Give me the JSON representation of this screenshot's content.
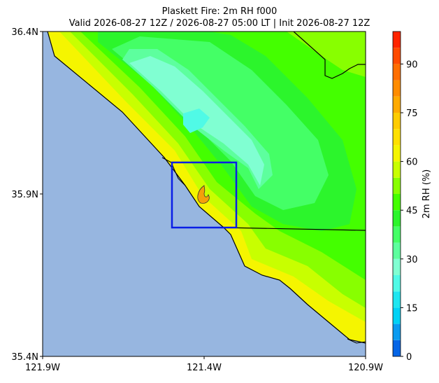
{
  "map": {
    "title": "Plaskett Fire: 2m RH f000",
    "subtitle": "Valid 2026-08-27 12Z / 2026-08-27 05:00 LT | Init 2026-08-27 12Z",
    "xlim": [
      -121.9,
      -120.9
    ],
    "ylim": [
      35.4,
      36.4
    ],
    "xticks": [
      {
        "value": -121.9,
        "label": "121.9W"
      },
      {
        "value": -121.4,
        "label": "121.4W"
      },
      {
        "value": -120.9,
        "label": "120.9W"
      }
    ],
    "yticks": [
      {
        "value": 35.4,
        "label": "35.4N"
      },
      {
        "value": 35.9,
        "label": "35.9N"
      },
      {
        "value": 36.4,
        "label": "36.4N"
      }
    ],
    "colorbar": {
      "label": "2m RH (%)",
      "ylim": [
        0,
        100
      ],
      "levels": [
        0,
        5,
        10,
        15,
        20,
        25,
        30,
        35,
        40,
        45,
        50,
        55,
        60,
        65,
        70,
        75,
        80,
        85,
        90,
        95,
        100
      ],
      "colors": [
        "#0565e6",
        "#0a9bf0",
        "#00d2f5",
        "#1ee6f0",
        "#50fae6",
        "#80ffd2",
        "#5dff9e",
        "#44ff66",
        "#2cf52c",
        "#44ff00",
        "#88ff00",
        "#c8ff00",
        "#f5f500",
        "#ffe000",
        "#ffcc00",
        "#ffaa00",
        "#ff8c00",
        "#ff6e00",
        "#ff4a00",
        "#ff2400"
      ],
      "ticks": [
        0,
        15,
        30,
        45,
        60,
        75,
        90
      ]
    }
  }
}
